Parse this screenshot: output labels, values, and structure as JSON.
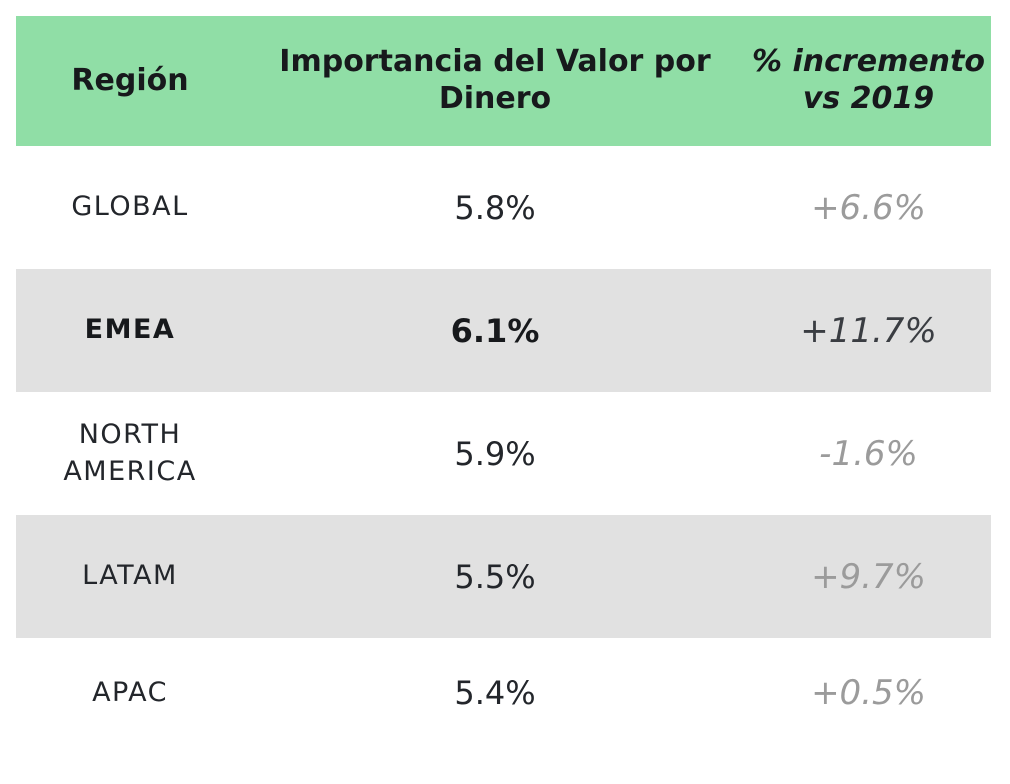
{
  "table": {
    "headers": {
      "region": "Región",
      "importance": "Importancia del Valor por Dinero",
      "change": "% incremento vs 2019"
    },
    "rows": [
      {
        "region": "GLOBAL",
        "importance": "5.8%",
        "change": "+6.6%"
      },
      {
        "region": "EMEA",
        "importance": "6.1%",
        "change": "+11.7%"
      },
      {
        "region": "NORTH AMERICA",
        "importance": "5.9%",
        "change": "-1.6%"
      },
      {
        "region": "LATAM",
        "importance": "5.5%",
        "change": "+9.7%"
      },
      {
        "region": "APAC",
        "importance": "5.4%",
        "change": "+0.5%"
      }
    ]
  },
  "colors": {
    "header_bg": "#90dea6",
    "shaded_row_bg": "#e1e1e1",
    "change_text": "#9b9b9b"
  }
}
